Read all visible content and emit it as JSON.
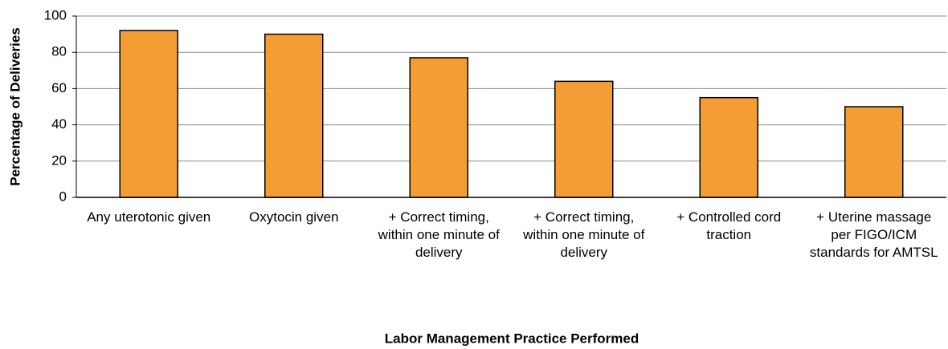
{
  "chart_data": {
    "type": "bar",
    "x_label": "Labor Management Practice Performed",
    "y_label": "Percentage of Deliveries",
    "categories": [
      "Any uterotonic given",
      "Oxytocin given",
      "+ Correct timing, within one minute of delivery",
      "+ Correct timing, within one minute of delivery",
      "+ Controlled cord traction",
      "+ Uterine massage per FIGO/ICM standards for AMTSL"
    ],
    "values": [
      92,
      90,
      77,
      64,
      55,
      50
    ],
    "color": "#f59d35",
    "ylim": [
      0,
      100
    ],
    "yticks": [
      0,
      20,
      40,
      60,
      80,
      100
    ],
    "grid": true
  }
}
